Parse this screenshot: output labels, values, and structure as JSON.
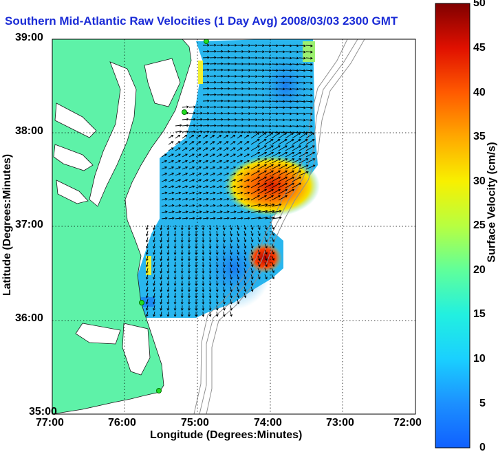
{
  "title": "Southern Mid-Atlantic Raw Velocities (1 Day Avg) 2008/03/03 2300 GMT",
  "map": {
    "xlabel": "Longitude (Degrees:Minutes)",
    "ylabel": "Latitude (Degrees:Minutes)",
    "x_ticks": [
      "77:00",
      "76:00",
      "75:00",
      "74:00",
      "73:00",
      "72:00"
    ],
    "y_ticks": [
      "39:00",
      "38:00",
      "37:00",
      "36:00",
      "35:00"
    ]
  },
  "colorbar": {
    "label": "Surface Velocity (cm/s)",
    "ticks": [
      "50",
      "45",
      "40",
      "35",
      "30",
      "25",
      "20",
      "15",
      "10",
      "5",
      "0"
    ]
  },
  "colors": {
    "title": "#1a2bd6",
    "land": "#5ef2a8",
    "background_field": "#29b6ee"
  }
}
